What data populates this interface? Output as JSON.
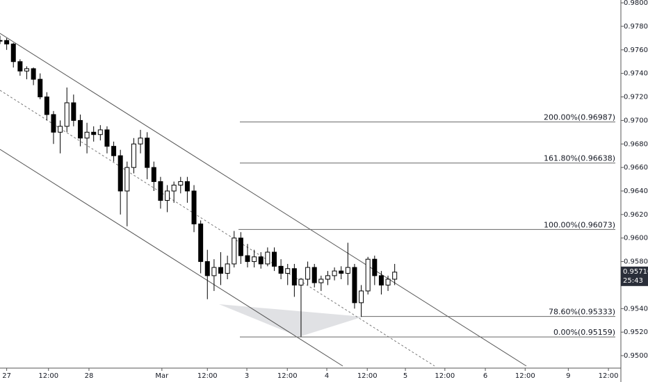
{
  "chart_data": {
    "type": "candlestick",
    "x": [
      0,
      2,
      4,
      6,
      8,
      10,
      12,
      14,
      16,
      18,
      20,
      22,
      24,
      26,
      28,
      30,
      32,
      34,
      36,
      38,
      40,
      42,
      44,
      46,
      48,
      50,
      52,
      54,
      56,
      58,
      60,
      62,
      64,
      66,
      68,
      70,
      72,
      74,
      76,
      78,
      80,
      82,
      84,
      86,
      88,
      90,
      92,
      94,
      96,
      98,
      100,
      102,
      104,
      106,
      108,
      110,
      112,
      114,
      116,
      118
    ],
    "open": [
      0.9768,
      0.9768,
      0.9765,
      0.975,
      0.9742,
      0.9744,
      0.9735,
      0.972,
      0.9705,
      0.969,
      0.9695,
      0.9715,
      0.97,
      0.9685,
      0.969,
      0.9688,
      0.9692,
      0.9678,
      0.967,
      0.964,
      0.966,
      0.968,
      0.9685,
      0.966,
      0.9648,
      0.9632,
      0.964,
      0.9645,
      0.9648,
      0.964,
      0.9612,
      0.958,
      0.9568,
      0.9575,
      0.957,
      0.9578,
      0.96,
      0.9585,
      0.958,
      0.9584,
      0.9578,
      0.9588,
      0.9576,
      0.957,
      0.9574,
      0.956,
      0.9565,
      0.9575,
      0.9562,
      0.9565,
      0.9568,
      0.9572,
      0.957,
      0.9575,
      0.9545,
      0.9555,
      0.9582,
      0.9568,
      0.956,
      0.9565
    ],
    "high": [
      0.9772,
      0.977,
      0.9766,
      0.9752,
      0.9746,
      0.9745,
      0.974,
      0.9724,
      0.9708,
      0.97,
      0.9728,
      0.9722,
      0.9705,
      0.9698,
      0.9695,
      0.9696,
      0.9695,
      0.9682,
      0.9675,
      0.9665,
      0.9685,
      0.9692,
      0.969,
      0.9665,
      0.9652,
      0.9645,
      0.9648,
      0.9652,
      0.9652,
      0.9645,
      0.9615,
      0.959,
      0.9582,
      0.9588,
      0.9585,
      0.9606,
      0.9605,
      0.9595,
      0.959,
      0.9588,
      0.9592,
      0.9592,
      0.9582,
      0.9578,
      0.9578,
      0.9566,
      0.958,
      0.9578,
      0.9568,
      0.9572,
      0.9575,
      0.9576,
      0.9596,
      0.9578,
      0.956,
      0.9584,
      0.9585,
      0.9572,
      0.9568,
      0.9578
    ],
    "low": [
      0.9765,
      0.976,
      0.9745,
      0.9738,
      0.9735,
      0.973,
      0.9718,
      0.97,
      0.968,
      0.9672,
      0.969,
      0.9695,
      0.9678,
      0.9672,
      0.9682,
      0.9683,
      0.9672,
      0.9665,
      0.962,
      0.961,
      0.9655,
      0.9672,
      0.965,
      0.964,
      0.9625,
      0.9622,
      0.963,
      0.9638,
      0.963,
      0.9605,
      0.957,
      0.9548,
      0.9555,
      0.956,
      0.9565,
      0.9575,
      0.9578,
      0.9575,
      0.9575,
      0.9574,
      0.9576,
      0.9572,
      0.9565,
      0.956,
      0.955,
      0.9516,
      0.956,
      0.9558,
      0.9555,
      0.956,
      0.9564,
      0.9565,
      0.956,
      0.954,
      0.9533,
      0.9552,
      0.956,
      0.9552,
      0.9555,
      0.956
    ],
    "close": [
      0.9768,
      0.9765,
      0.975,
      0.9742,
      0.9744,
      0.9735,
      0.972,
      0.9705,
      0.969,
      0.9695,
      0.9715,
      0.97,
      0.9685,
      0.969,
      0.9688,
      0.9692,
      0.9678,
      0.967,
      0.964,
      0.966,
      0.968,
      0.9685,
      0.966,
      0.9648,
      0.9632,
      0.964,
      0.9645,
      0.9648,
      0.964,
      0.9612,
      0.958,
      0.9568,
      0.9575,
      0.957,
      0.9578,
      0.96,
      0.9585,
      0.958,
      0.9584,
      0.9578,
      0.9588,
      0.9576,
      0.957,
      0.9574,
      0.956,
      0.9565,
      0.9575,
      0.9562,
      0.9565,
      0.9568,
      0.9572,
      0.957,
      0.9575,
      0.9545,
      0.9555,
      0.9582,
      0.9568,
      0.956,
      0.9565,
      0.9571
    ],
    "up_color": "#ffffff",
    "down_color": "#000000",
    "xlim": [
      0,
      185
    ],
    "xticks": [
      {
        "value": 2,
        "label": "27"
      },
      {
        "value": 14.5,
        "label": "12:00"
      },
      {
        "value": 26.6,
        "label": "28"
      },
      {
        "value": 48.4,
        "label": "Mar"
      },
      {
        "value": 62,
        "label": "12:00"
      },
      {
        "value": 73.8,
        "label": "3"
      },
      {
        "value": 85.9,
        "label": "12:00"
      },
      {
        "value": 97.7,
        "label": "4"
      },
      {
        "value": 109.8,
        "label": "12:00"
      },
      {
        "value": 121.2,
        "label": "5"
      },
      {
        "value": 133,
        "label": "12:00"
      },
      {
        "value": 145.1,
        "label": "6"
      },
      {
        "value": 157,
        "label": "12:00"
      },
      {
        "value": 169.9,
        "label": "9"
      },
      {
        "value": 181.9,
        "label": "12:00"
      }
    ],
    "ylim": [
      0.94894,
      0.98024
    ],
    "yticks": [
      {
        "value": 0.98,
        "label": "0.98000"
      },
      {
        "value": 0.978,
        "label": "0.97800"
      },
      {
        "value": 0.976,
        "label": "0.97600"
      },
      {
        "value": 0.974,
        "label": "0.97400"
      },
      {
        "value": 0.972,
        "label": "0.97200"
      },
      {
        "value": 0.97,
        "label": "0.97000"
      },
      {
        "value": 0.968,
        "label": "0.96800"
      },
      {
        "value": 0.966,
        "label": "0.96600"
      },
      {
        "value": 0.964,
        "label": "0.96400"
      },
      {
        "value": 0.962,
        "label": "0.96200"
      },
      {
        "value": 0.96,
        "label": "0.96000"
      },
      {
        "value": 0.958,
        "label": "0.95800"
      },
      {
        "value": 0.954,
        "label": "0.95400"
      },
      {
        "value": 0.952,
        "label": "0.95200"
      },
      {
        "value": 0.95,
        "label": "0.95000"
      }
    ],
    "fib_levels": [
      {
        "value": 0.96987,
        "label": "200.00%(0.96987)"
      },
      {
        "value": 0.96638,
        "label": "161.80%(0.96638)"
      },
      {
        "value": 0.96073,
        "label": "100.00%(0.96073)"
      },
      {
        "value": 0.95333,
        "label": "78.60%(0.95333)"
      },
      {
        "value": 0.95159,
        "label": "0.00%(0.95159)"
      }
    ],
    "last_price": {
      "value": 0.9571,
      "label": "0.95710"
    },
    "countdown": "25:43"
  }
}
